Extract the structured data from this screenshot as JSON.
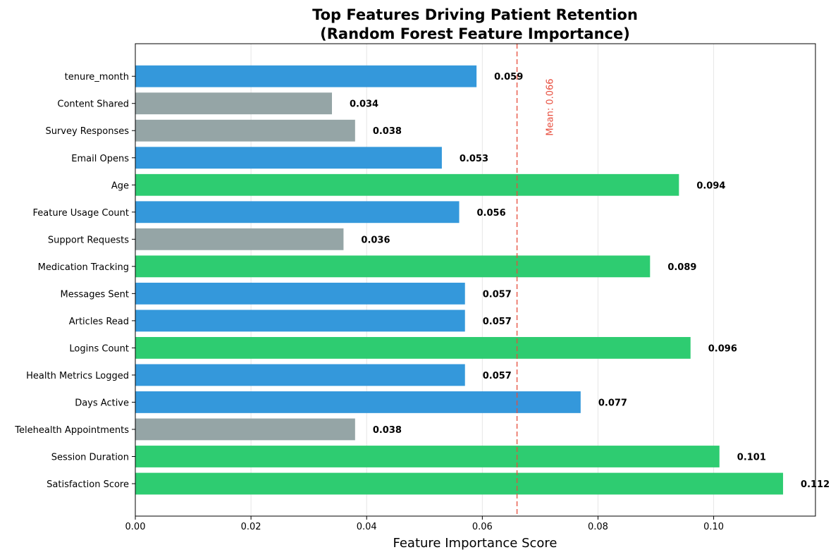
{
  "chart_data": {
    "type": "bar",
    "orientation": "horizontal",
    "title": [
      "Top Features Driving Patient Retention",
      "(Random Forest Feature Importance)"
    ],
    "xlabel": "Feature Importance Score",
    "ylabel": "",
    "xlim": [
      0,
      0.1176
    ],
    "xticks": [
      0.0,
      0.02,
      0.04,
      0.06,
      0.08,
      0.1
    ],
    "xtick_labels": [
      "0.00",
      "0.02",
      "0.04",
      "0.06",
      "0.08",
      "0.10"
    ],
    "grid": "x-axis vertical lines",
    "categories": [
      "Satisfaction Score",
      "Session Duration",
      "Telehealth Appointments",
      "Days Active",
      "Health Metrics Logged",
      "Logins Count",
      "Articles Read",
      "Messages Sent",
      "Medication Tracking",
      "Support Requests",
      "Feature Usage Count",
      "Age",
      "Email Opens",
      "Survey Responses",
      "Content Shared",
      "tenure_month"
    ],
    "values": [
      0.112,
      0.101,
      0.038,
      0.077,
      0.057,
      0.096,
      0.057,
      0.057,
      0.089,
      0.036,
      0.056,
      0.094,
      0.053,
      0.038,
      0.034,
      0.059
    ],
    "value_labels": [
      "0.112",
      "0.101",
      "0.038",
      "0.077",
      "0.057",
      "0.096",
      "0.057",
      "0.057",
      "0.089",
      "0.036",
      "0.056",
      "0.094",
      "0.053",
      "0.038",
      "0.034",
      "0.059"
    ],
    "bar_colors": [
      "#2ecc71",
      "#2ecc71",
      "#95a5a6",
      "#3498db",
      "#3498db",
      "#2ecc71",
      "#3498db",
      "#3498db",
      "#2ecc71",
      "#95a5a6",
      "#3498db",
      "#2ecc71",
      "#3498db",
      "#95a5a6",
      "#95a5a6",
      "#3498db"
    ],
    "reference_line": {
      "value": 0.066,
      "label": "Mean: 0.066",
      "color": "#e74c3c",
      "style": "dashed"
    }
  }
}
